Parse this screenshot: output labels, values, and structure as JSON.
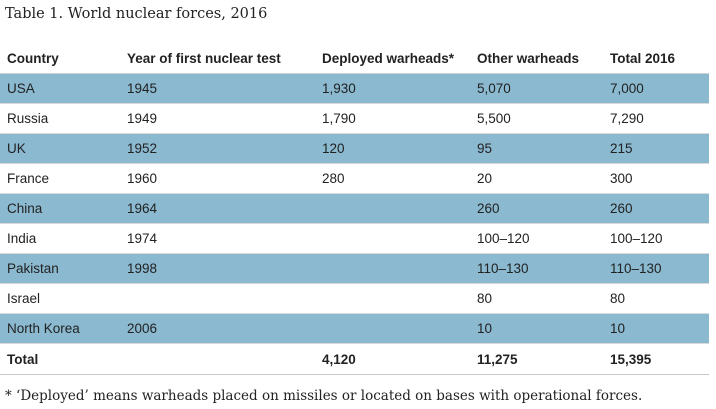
{
  "caption": "Table 1. World nuclear forces, 2016",
  "headers": [
    "Country",
    "Year of first nuclear test",
    "Deployed warheads*",
    "Other warheads",
    "Total 2016"
  ],
  "rows": [
    [
      "USA",
      "1945",
      "1,930",
      "5,070",
      "7,000"
    ],
    [
      "Russia",
      "1949",
      "1,790",
      "5,500",
      "7,290"
    ],
    [
      "UK",
      "1952",
      "120",
      "95",
      "215"
    ],
    [
      "France",
      "1960",
      "280",
      "20",
      "300"
    ],
    [
      "China",
      "1964",
      "",
      "260",
      "260"
    ],
    [
      "India",
      "1974",
      "",
      "100–120",
      "100–120"
    ],
    [
      "Pakistan",
      "1998",
      "",
      "110–130",
      "110–130"
    ],
    [
      "Israel",
      "",
      "",
      "80",
      "80"
    ],
    [
      "North Korea",
      "2006",
      "",
      "10",
      "10"
    ]
  ],
  "total": [
    "Total",
    "",
    "4,120",
    "11,275",
    "15,395"
  ],
  "footnote": "* ‘Deployed’ means warheads placed on missiles or located on bases with operational forces.",
  "colors": {
    "row_highlight": "#8ab9d0"
  }
}
